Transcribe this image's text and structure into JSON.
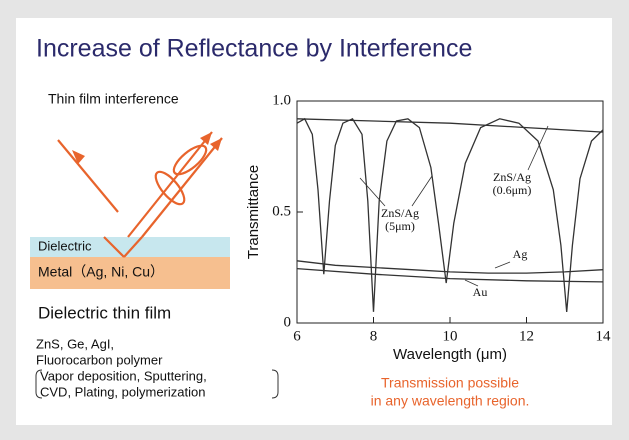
{
  "title": "Increase of Reflectance by Interference",
  "diagram": {
    "caption": "Thin film interference",
    "layer_top": "Dielectric",
    "layer_bottom": "Metal（Ag, Ni, Cu）",
    "heading": "Dielectric thin film",
    "materials": [
      "ZnS, Ge, AgI,",
      "Fluorocarbon polymer"
    ],
    "methods": [
      "Vapor deposition, Sputtering,",
      "CVD, Plating, polymerization"
    ]
  },
  "note": [
    "Transmission possible",
    "in any wavelength region."
  ],
  "chart_data": {
    "type": "line",
    "x_label": "Wavelength (μm)",
    "y_label": "Transmittance",
    "xlim": [
      6,
      14
    ],
    "xticks": [
      6,
      8,
      10,
      12,
      14
    ],
    "ylim": [
      0,
      1
    ],
    "yticks": [
      0,
      0.5,
      {
        "value": 1,
        "label": "1.0"
      }
    ],
    "series": [
      {
        "name": "ZnS/Ag",
        "detail": "(5μm)",
        "color": "#333333",
        "x": [
          6,
          6.2,
          6.4,
          6.55,
          6.7,
          6.85,
          7.0,
          7.2,
          7.45,
          7.7,
          7.85,
          8.0,
          8.15,
          8.35,
          8.6,
          8.9,
          9.2,
          9.5,
          9.7,
          9.9,
          10.1,
          10.4,
          10.8,
          11.3,
          11.8,
          12.3,
          12.7,
          12.9,
          13.05,
          13.2,
          13.4,
          13.7,
          14
        ],
        "values": [
          0.9,
          0.92,
          0.85,
          0.6,
          0.22,
          0.55,
          0.8,
          0.9,
          0.92,
          0.85,
          0.55,
          0.05,
          0.55,
          0.82,
          0.91,
          0.92,
          0.88,
          0.7,
          0.45,
          0.18,
          0.45,
          0.72,
          0.88,
          0.92,
          0.9,
          0.82,
          0.6,
          0.35,
          0.05,
          0.35,
          0.65,
          0.82,
          0.87
        ]
      },
      {
        "name": "ZnS/Ag",
        "detail": "(0.6μm)",
        "color": "#333333",
        "x": [
          6,
          8,
          10,
          12,
          14
        ],
        "values": [
          0.92,
          0.91,
          0.9,
          0.88,
          0.86
        ]
      },
      {
        "name": "Ag",
        "color": "#333333",
        "x": [
          6,
          7,
          8,
          9,
          10,
          11,
          12,
          13,
          14
        ],
        "values": [
          0.28,
          0.26,
          0.25,
          0.24,
          0.23,
          0.225,
          0.225,
          0.23,
          0.24
        ]
      },
      {
        "name": "Au",
        "color": "#333333",
        "x": [
          6,
          8,
          10,
          12,
          14
        ],
        "values": [
          0.245,
          0.22,
          0.2,
          0.19,
          0.185
        ]
      }
    ]
  }
}
